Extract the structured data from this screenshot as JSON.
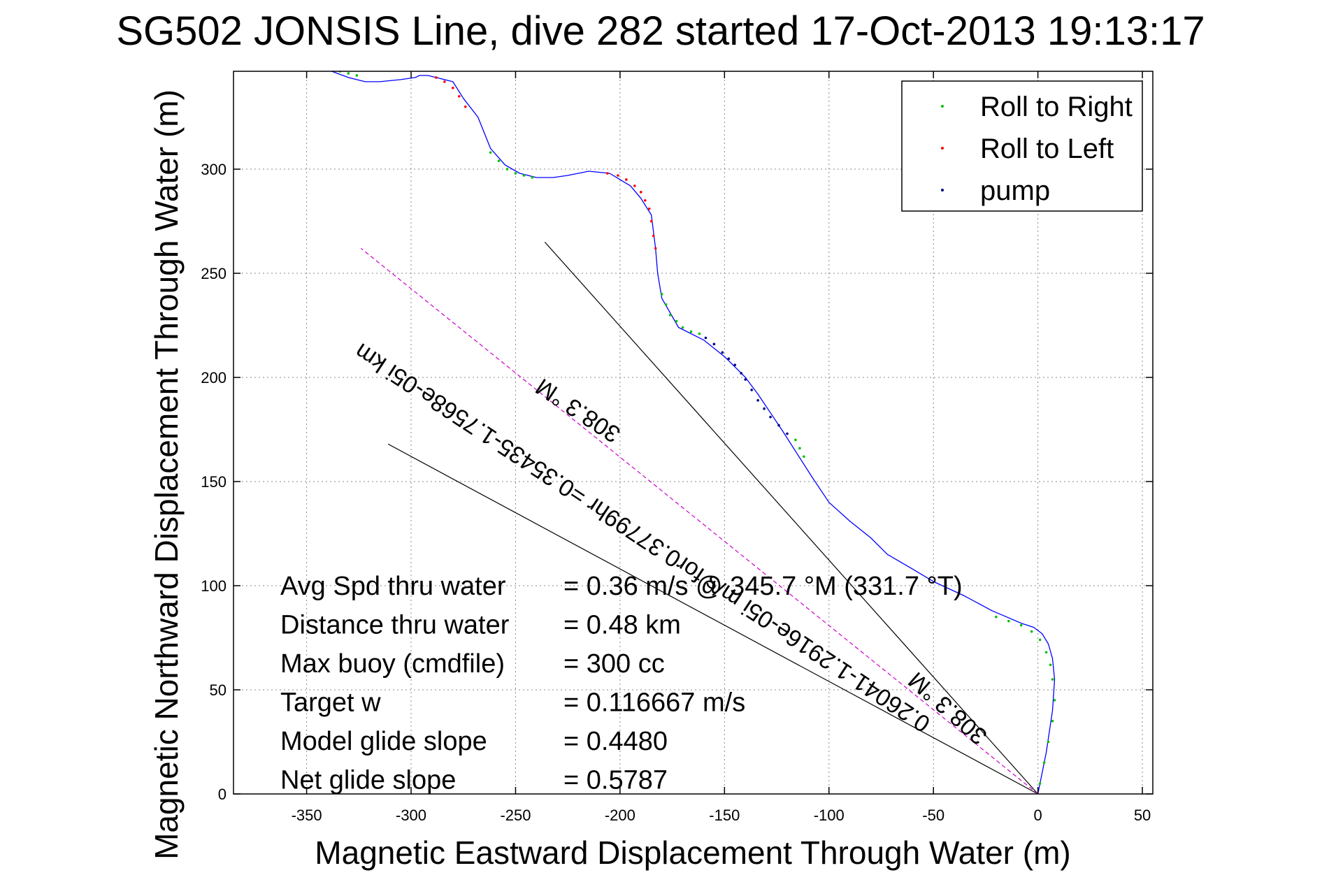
{
  "chart_data": {
    "type": "line",
    "title": "SG502 JONSIS Line, dive 282 started 17-Oct-2013 19:13:17",
    "xlabel": "Magnetic Eastward Displacement Through Water (m)",
    "ylabel": "Magnetic Northward Displacement Through Water (m)",
    "xlim": [
      -385,
      55
    ],
    "ylim": [
      0,
      347
    ],
    "xticks": [
      -350,
      -300,
      -250,
      -200,
      -150,
      -100,
      -50,
      0,
      50
    ],
    "yticks": [
      0,
      50,
      100,
      150,
      200,
      250,
      300
    ],
    "grid": true,
    "legend_position": "top-right",
    "legend": [
      {
        "label": "Roll to Right",
        "color": "#00c000"
      },
      {
        "label": "Roll to Left",
        "color": "#ff0000"
      },
      {
        "label": "pump",
        "color": "#000080"
      }
    ],
    "track": {
      "color": "#0000ff",
      "x": [
        0,
        4,
        7,
        8,
        7,
        5,
        2,
        -2,
        -8,
        -15,
        -22,
        -35,
        -50,
        -60,
        -72,
        -80,
        -90,
        -100,
        -108,
        -115,
        -122,
        -128,
        -134,
        -140,
        -145,
        -150,
        -160,
        -172,
        -180,
        -182,
        -183,
        -184,
        -185,
        -190,
        -195,
        -205,
        -215,
        -225,
        -232,
        -240,
        -248,
        -255,
        -262,
        -268,
        -275,
        -280,
        -288,
        -292,
        -296,
        -298,
        -305,
        -315,
        -322,
        -330,
        -338,
        -346
      ],
      "y": [
        0,
        20,
        40,
        55,
        65,
        72,
        77,
        80,
        82,
        85,
        88,
        95,
        102,
        108,
        115,
        123,
        131,
        140,
        152,
        163,
        174,
        183,
        192,
        200,
        205,
        210,
        218,
        224,
        238,
        250,
        262,
        270,
        278,
        286,
        292,
        298,
        299,
        297,
        296,
        296,
        298,
        302,
        310,
        325,
        334,
        342,
        344,
        345,
        345,
        344,
        343,
        342,
        342,
        344,
        347,
        348
      ]
    },
    "pump_markers": {
      "x": [
        -159,
        -155,
        -151,
        -148,
        -145,
        -142,
        -140,
        -137,
        -134,
        -131,
        -128,
        -124,
        -120
      ],
      "y": [
        219,
        216,
        212,
        209,
        206,
        202,
        199,
        194,
        189,
        185,
        181,
        177,
        173
      ]
    },
    "roll_right_markers": {
      "x": [
        1,
        3,
        5,
        7,
        8,
        7,
        6,
        4,
        1,
        -3,
        -8,
        -14,
        -20,
        -180,
        -178,
        -176,
        -173,
        -170,
        -166,
        -162,
        -116,
        -114,
        -112,
        -262,
        -258,
        -254,
        -250,
        -246,
        -242,
        -334,
        -330,
        -326
      ],
      "y": [
        5,
        15,
        25,
        35,
        45,
        55,
        62,
        68,
        74,
        78,
        81,
        83,
        85,
        240,
        235,
        230,
        227,
        224,
        222,
        221,
        170,
        166,
        162,
        308,
        304,
        300,
        298,
        297,
        296,
        347,
        346,
        345
      ]
    },
    "roll_left_markers": {
      "x": [
        -183,
        -184,
        -185,
        -186,
        -188,
        -190,
        -193,
        -197,
        -201,
        -206,
        -274,
        -277,
        -280,
        -284,
        -288
      ],
      "y": [
        262,
        268,
        275,
        281,
        285,
        289,
        292,
        295,
        297,
        298,
        330,
        335,
        339,
        342,
        344
      ]
    },
    "reference_lines": [
      {
        "x": [
          0,
          -236
        ],
        "y": [
          0,
          265
        ],
        "color": "#000000"
      },
      {
        "x": [
          0,
          -311
        ],
        "y": [
          0,
          168
        ],
        "color": "#000000"
      },
      {
        "x": [
          0,
          -324
        ],
        "y": [
          0,
          262
        ],
        "color": "#cc00cc",
        "dash": true
      }
    ],
    "annotations": {
      "angled_long": "0.26041-1.2916e-05i m/s for0.37799hr =0.35435-1.7568e-05i km",
      "angled_short": "308.3 °M",
      "heading_label_1": "308.3 °M",
      "stats": [
        {
          "label": "Avg Spd thru water",
          "value": "=  0.36 m/s @ 345.7 °M (331.7 °T)"
        },
        {
          "label": "Distance thru water",
          "value": "=  0.48 km"
        },
        {
          "label": "Max buoy (cmdfile)",
          "value": "= 300 cc"
        },
        {
          "label": "Target w",
          "value": "= 0.116667 m/s"
        },
        {
          "label": "Model glide slope",
          "value": "= 0.4480"
        },
        {
          "label": "Net glide slope",
          "value": "= 0.5787"
        }
      ]
    }
  }
}
